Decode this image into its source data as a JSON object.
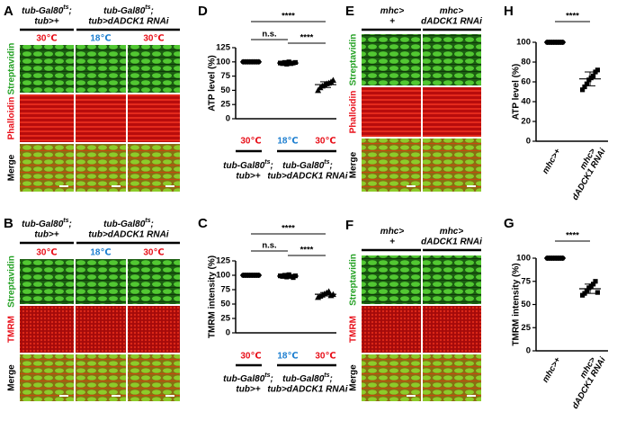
{
  "panels": [
    {
      "label": "A",
      "genotypes": [
        {
          "name": "tub-Gal80",
          "sup": "ts",
          "punct": ";",
          "line2": "tub>+"
        },
        {
          "name": "tub-Gal80",
          "sup": "ts",
          "punct": ";",
          "line2": "tub>dADCK1 RNAi"
        }
      ],
      "temperatures": [
        "30℃",
        "18℃",
        "30℃"
      ],
      "temperature_colors": [
        "#e8101a",
        "#1e7fd0",
        "#e8101a"
      ],
      "rows": [
        "Streptavidin",
        "Phalloidin",
        "Merge"
      ],
      "row_colors": [
        "#22a022",
        "#e8101a",
        "#000000"
      ]
    },
    {
      "label": "B",
      "genotypes": [
        {
          "name": "tub-Gal80",
          "sup": "ts",
          "punct": ";",
          "line2": "tub>+"
        },
        {
          "name": "tub-Gal80",
          "sup": "ts",
          "punct": ";",
          "line2": "tub>dADCK1 RNAi"
        }
      ],
      "temperatures": [
        "30℃",
        "18℃",
        "30℃"
      ],
      "temperature_colors": [
        "#e8101a",
        "#1e7fd0",
        "#e8101a"
      ],
      "rows": [
        "Streptavidin",
        "TMRM",
        "Merge"
      ],
      "row_colors": [
        "#22a022",
        "#e8101a",
        "#000000"
      ]
    },
    {
      "label": "E",
      "genotypes": [
        {
          "line1": "mhc>",
          "line2": "+"
        },
        {
          "line1": "mhc>",
          "line2": "dADCK1 RNAi"
        }
      ],
      "rows": [
        "Streptavidin",
        "Phalloidin",
        "Merge"
      ],
      "row_colors": [
        "#22a022",
        "#e8101a",
        "#000000"
      ]
    },
    {
      "label": "F",
      "genotypes": [
        {
          "line1": "mhc>",
          "line2": "+"
        },
        {
          "line1": "mhc>",
          "line2": "dADCK1 RNAi"
        }
      ],
      "rows": [
        "Streptavidin",
        "TMRM",
        "Merge"
      ],
      "row_colors": [
        "#22a022",
        "#e8101a",
        "#000000"
      ]
    }
  ],
  "chart_data": [
    {
      "type": "strip",
      "label": "D",
      "y_label": "ATP level (%)",
      "ylim": [
        0,
        125
      ],
      "yticks": [
        0,
        25,
        50,
        75,
        100,
        125
      ],
      "annotations": [
        "****",
        "n.s.",
        "****"
      ],
      "categories": [
        "30℃",
        "18℃",
        "30℃"
      ],
      "category_colors": [
        "#e8101a",
        "#1e7fd0",
        "#e8101a"
      ],
      "genotypes": [
        {
          "name": "tub-Gal80",
          "sup": "ts",
          "punct": ";",
          "line2": "tub>+"
        },
        {
          "name": "tub-Gal80",
          "sup": "ts",
          "punct": ";",
          "line2": "tub>dADCK1 RNAi"
        }
      ],
      "groups": [
        {
          "marker": "circle",
          "values": [
            100,
            100,
            100,
            100,
            100,
            100,
            100,
            100
          ],
          "mean": 100,
          "sd": 0
        },
        {
          "marker": "square",
          "values": [
            98,
            97,
            99,
            96,
            100,
            97,
            98,
            99
          ],
          "mean": 98,
          "sd": 1.3
        },
        {
          "marker": "triangle",
          "values": [
            50,
            55,
            58,
            60,
            62,
            63,
            65,
            68
          ],
          "mean": 60,
          "sd": 5
        }
      ]
    },
    {
      "type": "strip",
      "label": "C",
      "y_label": "TMRM intensity (%)",
      "ylim": [
        0,
        125
      ],
      "yticks": [
        0,
        25,
        50,
        75,
        100,
        125
      ],
      "annotations": [
        "****",
        "n.s.",
        "****"
      ],
      "categories": [
        "30℃",
        "18℃",
        "30℃"
      ],
      "category_colors": [
        "#e8101a",
        "#1e7fd0",
        "#e8101a"
      ],
      "genotypes": [
        {
          "name": "tub-Gal80",
          "sup": "ts",
          "punct": ";",
          "line2": "tub>+"
        },
        {
          "name": "tub-Gal80",
          "sup": "ts",
          "punct": ";",
          "line2": "tub>dADCK1 RNAi"
        }
      ],
      "groups": [
        {
          "marker": "circle",
          "values": [
            100,
            100,
            100,
            100,
            100,
            100,
            100,
            100
          ],
          "mean": 100,
          "sd": 0
        },
        {
          "marker": "square",
          "values": [
            99,
            98,
            100,
            97,
            101,
            98,
            96,
            99
          ],
          "mean": 98.5,
          "sd": 1.5
        },
        {
          "marker": "triangle",
          "values": [
            62,
            64,
            66,
            68,
            70,
            72,
            65,
            67
          ],
          "mean": 67,
          "sd": 3
        }
      ]
    },
    {
      "type": "strip",
      "label": "H",
      "y_label": "ATP level (%)",
      "ylim": [
        0,
        100
      ],
      "yticks": [
        0,
        20,
        40,
        60,
        80,
        100
      ],
      "annotations": [
        "****"
      ],
      "categories": [
        [
          "mhc>+"
        ],
        [
          "mhc>",
          "dADCK1 RNAi"
        ]
      ],
      "groups": [
        {
          "marker": "circle",
          "values": [
            100,
            100,
            100,
            100,
            100,
            100,
            100,
            100
          ],
          "mean": 100,
          "sd": 0
        },
        {
          "marker": "square",
          "values": [
            52,
            55,
            58,
            62,
            64,
            66,
            70,
            72
          ],
          "mean": 63,
          "sd": 7
        }
      ]
    },
    {
      "type": "strip",
      "label": "G",
      "y_label": "TMRM intensity (%)",
      "ylim": [
        0,
        100
      ],
      "yticks": [
        0,
        25,
        50,
        75,
        100
      ],
      "annotations": [
        "****"
      ],
      "categories": [
        [
          "mhc>+"
        ],
        [
          "mhc>",
          "dADCK1 RNAi"
        ]
      ],
      "groups": [
        {
          "marker": "circle",
          "values": [
            100,
            100,
            100,
            100,
            100,
            100,
            100,
            100
          ],
          "mean": 100,
          "sd": 0
        },
        {
          "marker": "square",
          "values": [
            60,
            62,
            65,
            68,
            70,
            72,
            75,
            63
          ],
          "mean": 67,
          "sd": 5
        }
      ]
    }
  ]
}
